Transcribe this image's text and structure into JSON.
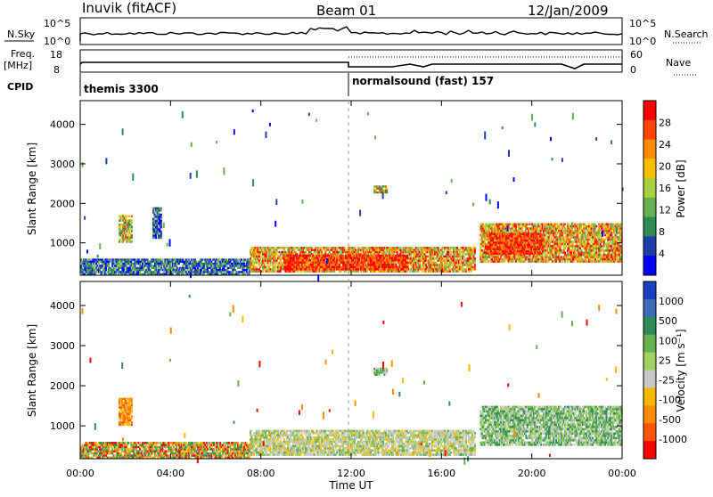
{
  "header": {
    "station": "Inuvik (fitACF)",
    "beam": "Beam 01",
    "date": "12/Jan/2009"
  },
  "top_panels": {
    "nsky_label": "N.Sky",
    "nsky_ticks": [
      "10^5",
      "10^0"
    ],
    "nsearch_label": "N.Search",
    "freq_label_1": "Freq.",
    "freq_label_2": "[MHz]",
    "freq_ticks": [
      "18",
      "8"
    ],
    "nave_ticks": [
      "60",
      "0"
    ],
    "nave_label": "Nave",
    "cpid_label": "CPID",
    "cpid_1": "themis 3300",
    "cpid_2": "normalsound (fast) 157"
  },
  "colors": {
    "power_scale": [
      "#0000ff",
      "#1f3fa8",
      "#2e8b57",
      "#66b050",
      "#a8d040",
      "#f5c000",
      "#ff8c00",
      "#ff4400",
      "#ff0000"
    ],
    "velocity_scale": [
      "#1a3fbf",
      "#3a6ab8",
      "#2e8b57",
      "#66b050",
      "#a0d060",
      "#c8c8c8",
      "#f5b800",
      "#ff8c00",
      "#ff5500",
      "#ff0000"
    ]
  },
  "chart_data": [
    {
      "type": "heatmap",
      "name": "power",
      "ylabel": "Slant Range [km]",
      "xlabel": "",
      "x_ticks": [
        "00:00",
        "04:00",
        "08:00",
        "12:00",
        "16:00",
        "20:00",
        "00:00"
      ],
      "y_ticks": [
        1000,
        2000,
        3000,
        4000
      ],
      "xlim_hours": [
        0,
        24
      ],
      "ylim_km": [
        180,
        4600
      ],
      "colorbar_label": "Power [dB]",
      "colorbar_ticks": [
        "28",
        "24",
        "20",
        "16",
        "12",
        "8",
        "4"
      ],
      "regions": [
        {
          "t0": 7.5,
          "t1": 17.5,
          "r0": 250,
          "r1": 900,
          "level": "high"
        },
        {
          "t0": 9.0,
          "t1": 14.5,
          "r0": 300,
          "r1": 700,
          "level": "peak"
        },
        {
          "t0": 17.7,
          "t1": 24.0,
          "r0": 500,
          "r1": 1500,
          "level": "high"
        },
        {
          "t0": 18.0,
          "t1": 20.5,
          "r0": 700,
          "r1": 1250,
          "level": "peak"
        },
        {
          "t0": 1.7,
          "t1": 2.3,
          "r0": 1000,
          "r1": 1700,
          "level": "mid"
        },
        {
          "t0": 3.2,
          "t1": 3.6,
          "r0": 1100,
          "r1": 1900,
          "level": "low"
        },
        {
          "t0": 0.0,
          "t1": 7.5,
          "r0": 180,
          "r1": 600,
          "level": "low"
        },
        {
          "t0": 13.0,
          "t1": 13.6,
          "r0": 2250,
          "r1": 2450,
          "level": "mid"
        }
      ]
    },
    {
      "type": "heatmap",
      "name": "velocity",
      "ylabel": "Slant Range [km]",
      "xlabel": "Time UT",
      "x_ticks": [
        "00:00",
        "04:00",
        "08:00",
        "12:00",
        "16:00",
        "20:00",
        "00:00"
      ],
      "y_ticks": [
        1000,
        2000,
        3000,
        4000
      ],
      "xlim_hours": [
        0,
        24
      ],
      "ylim_km": [
        180,
        4600
      ],
      "colorbar_label": "Velocity [m s⁻¹]",
      "colorbar_ticks": [
        "1000",
        "500",
        "100",
        "25",
        "-25",
        "-100",
        "-500",
        "-1000"
      ],
      "regions": [
        {
          "t0": 7.5,
          "t1": 17.5,
          "r0": 250,
          "r1": 900,
          "level": "slow"
        },
        {
          "t0": 17.7,
          "t1": 24.0,
          "r0": 500,
          "r1": 1500,
          "level": "pos"
        },
        {
          "t0": 1.7,
          "t1": 2.3,
          "r0": 1000,
          "r1": 1700,
          "level": "neg"
        },
        {
          "t0": 0.0,
          "t1": 7.5,
          "r0": 180,
          "r1": 600,
          "level": "mixed"
        },
        {
          "t0": 13.0,
          "t1": 13.6,
          "r0": 2250,
          "r1": 2450,
          "level": "pos"
        }
      ]
    }
  ]
}
